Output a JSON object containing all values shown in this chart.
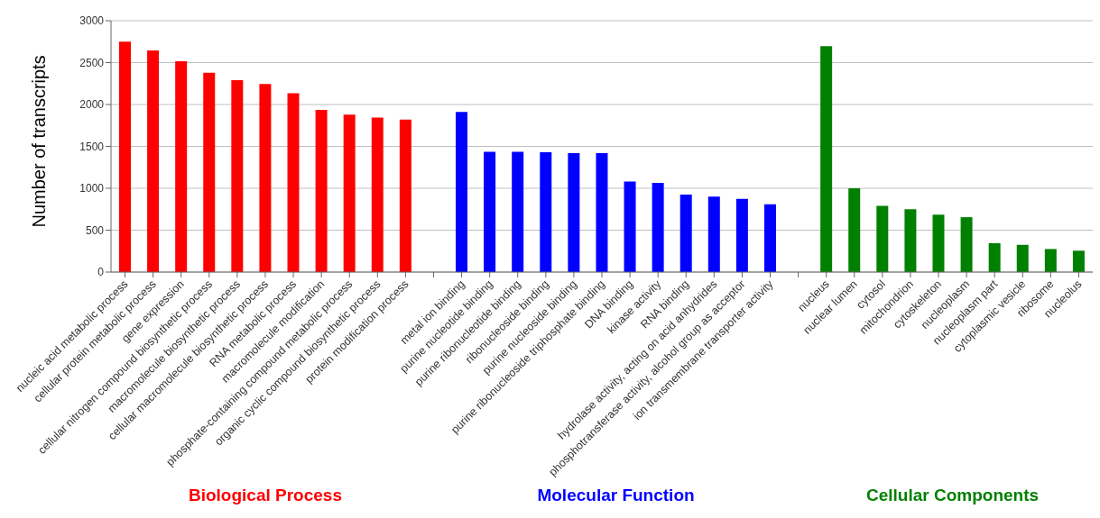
{
  "chart_data": {
    "type": "bar",
    "ylabel": "Number of transcripts",
    "categories": [
      "nucleic acid metabolic process",
      "cellular protein metabolic process",
      "gene expression",
      "cellular nitrogen compound biosynthetic process",
      "macromolecule biosynthetic process",
      "cellular macromolecule biosynthetic process",
      "RNA metabolic process",
      "macromolecule modification",
      "phosphate-containing compound  metabolic process",
      "organic cyclic compound biosynthetic process",
      "protein modification process",
      null,
      "metal ion binding",
      "purine nucleotide binding",
      "purine ribonucleotide binding",
      "ribonucleoside binding",
      "purine nucleoside binding",
      "purine ribonucleoside triphosphate binding",
      "DNA binding",
      "kinase activity",
      "RNA binding",
      "hydrolase activity, acting on acid anhydrides",
      "phosphotransferase activity, alcohol group as acceptor",
      "ion transmembrane transporter activity",
      null,
      "nucleus",
      "nuclear lumen",
      "cytosol",
      "mitochondrion",
      "cytoskeleton",
      "nucleoplasm",
      "nucleoplasm part",
      "cytoplasmic vesicle",
      "ribosome",
      "nucleolus"
    ],
    "series": [
      {
        "name": "Biological Process",
        "color": "#ff0000",
        "values": [
          2750,
          2645,
          2515,
          2380,
          2290,
          2245,
          2135,
          1935,
          1880,
          1845,
          1820,
          null,
          null,
          null,
          null,
          null,
          null,
          null,
          null,
          null,
          null,
          null,
          null,
          null,
          null,
          null,
          null,
          null,
          null,
          null,
          null,
          null,
          null,
          null,
          null
        ]
      },
      {
        "name": "Molecular Function",
        "color": "#0000ff",
        "values": [
          null,
          null,
          null,
          null,
          null,
          null,
          null,
          null,
          null,
          null,
          null,
          null,
          1910,
          1435,
          1435,
          1430,
          1420,
          1420,
          1080,
          1065,
          925,
          900,
          875,
          810,
          null,
          null,
          null,
          null,
          null,
          null,
          null,
          null,
          null,
          null,
          null
        ]
      },
      {
        "name": "Cellular Components",
        "color": "#008000",
        "values": [
          null,
          null,
          null,
          null,
          null,
          null,
          null,
          null,
          null,
          null,
          null,
          null,
          null,
          null,
          null,
          null,
          null,
          null,
          null,
          null,
          null,
          null,
          null,
          null,
          null,
          2695,
          1000,
          790,
          750,
          685,
          655,
          345,
          325,
          275,
          255
        ]
      }
    ],
    "ylim": [
      0,
      3000
    ],
    "yticks": [
      0,
      500,
      1000,
      1500,
      2000,
      2500,
      3000
    ],
    "grid": "y"
  }
}
